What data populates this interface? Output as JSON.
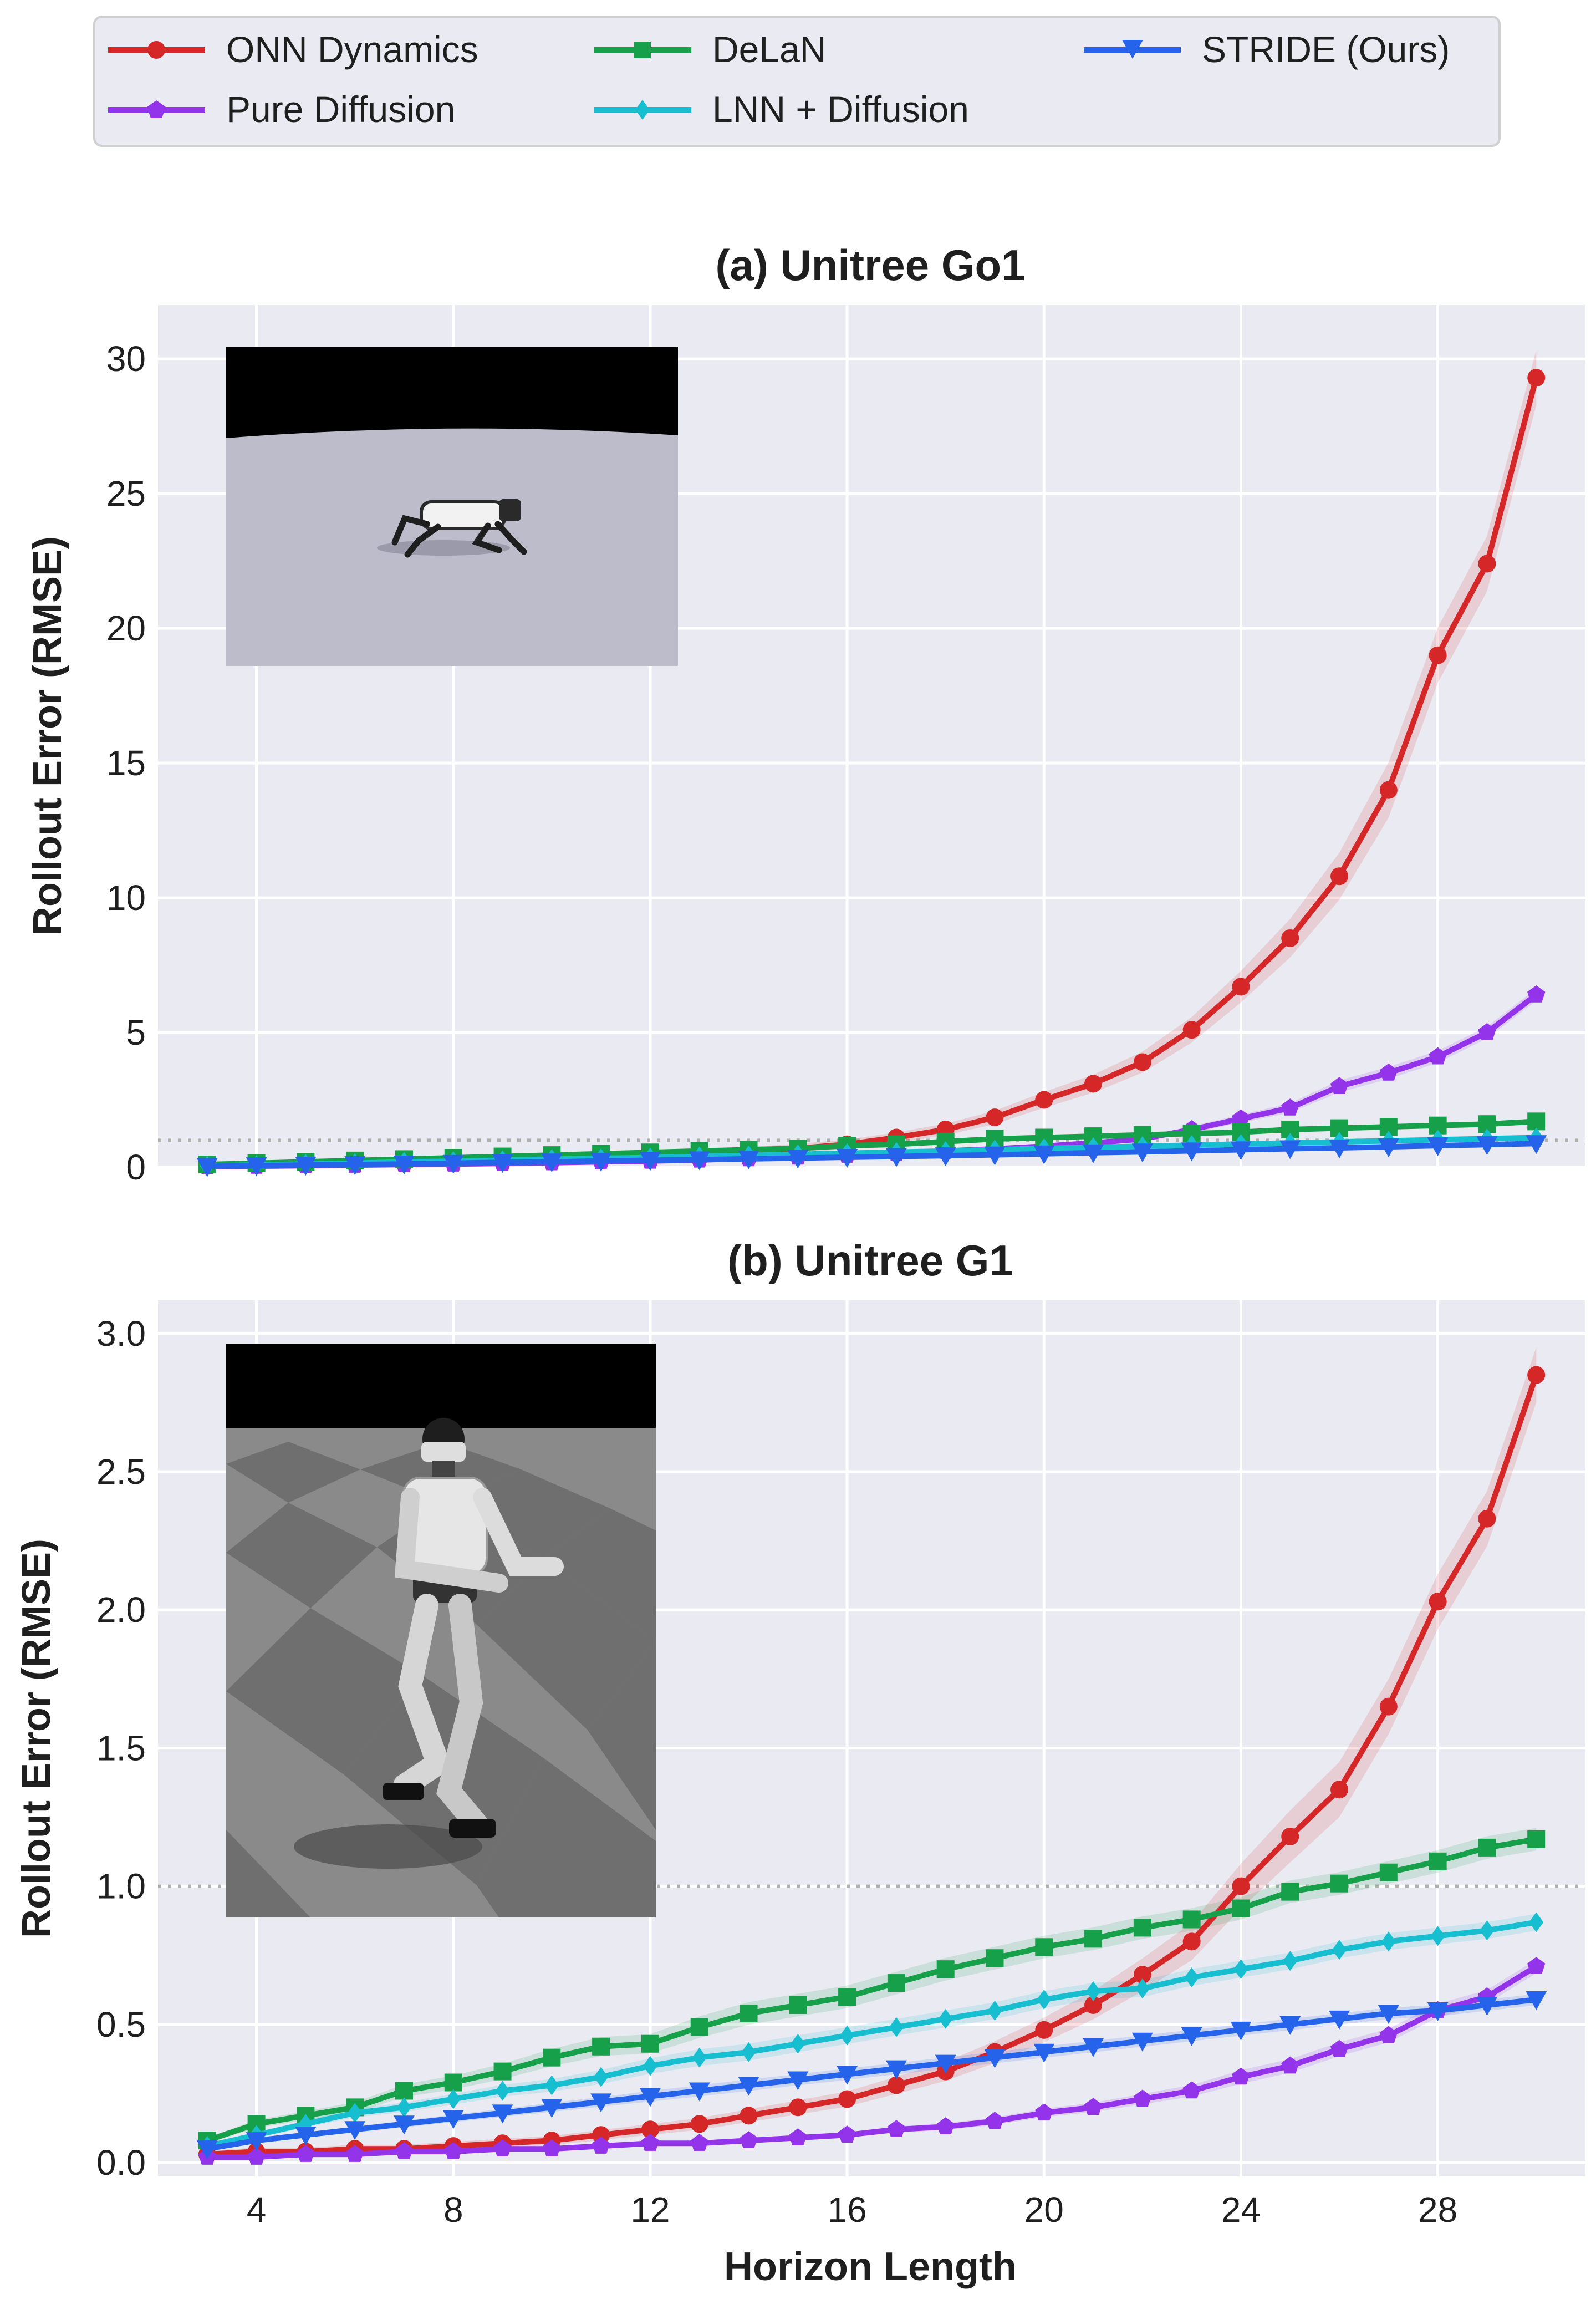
{
  "colors": {
    "plot_bg": "#eaeaf2",
    "grid": "#ffffff",
    "reference_line": "#b0b0b0",
    "legend_bg": "#eaeaf2",
    "legend_border": "#cfcfcf"
  },
  "legend": {
    "placement": "top",
    "entries": [
      {
        "label": "ONN Dynamics",
        "color": "#d62728",
        "marker": "circle"
      },
      {
        "label": "DeLaN",
        "color": "#16a04a",
        "marker": "square"
      },
      {
        "label": "STRIDE (Ours)",
        "color": "#2563eb",
        "marker": "triangle-down"
      },
      {
        "label": "Pure Diffusion",
        "color": "#9333ea",
        "marker": "pentagon"
      },
      {
        "label": "LNN + Diffusion",
        "color": "#17becf",
        "marker": "diamond"
      }
    ]
  },
  "chart_data": [
    {
      "type": "line",
      "title": "(a) Unitree Go1",
      "ylabel": "Rollout Error (RMSE)",
      "xlabel": "",
      "xlim": [
        2.0,
        31.0
      ],
      "ylim": [
        0,
        32
      ],
      "xticks": [
        4,
        8,
        12,
        16,
        20,
        24,
        28
      ],
      "yticks": [
        0,
        5,
        10,
        15,
        20,
        25,
        30
      ],
      "reference_line": 1.0,
      "grid": true,
      "inset": "quadruped-robot-render",
      "x": [
        3,
        4,
        5,
        6,
        7,
        8,
        9,
        10,
        11,
        12,
        13,
        14,
        15,
        16,
        17,
        18,
        19,
        20,
        21,
        22,
        23,
        24,
        25,
        26,
        27,
        28,
        29,
        30
      ],
      "series": [
        {
          "name": "ONN Dynamics",
          "values": [
            0.05,
            0.1,
            0.15,
            0.2,
            0.25,
            0.3,
            0.35,
            0.4,
            0.45,
            0.5,
            0.55,
            0.6,
            0.7,
            0.85,
            1.1,
            1.4,
            1.85,
            2.5,
            3.1,
            3.9,
            5.1,
            6.7,
            8.5,
            10.8,
            14.0,
            19.0,
            22.4,
            29.3
          ]
        },
        {
          "name": "Pure Diffusion",
          "values": [
            0.02,
            0.04,
            0.06,
            0.08,
            0.1,
            0.12,
            0.14,
            0.17,
            0.2,
            0.23,
            0.27,
            0.32,
            0.38,
            0.45,
            0.52,
            0.6,
            0.68,
            0.78,
            0.9,
            1.05,
            1.4,
            1.8,
            2.2,
            3.0,
            3.5,
            4.1,
            5.0,
            6.4
          ]
        },
        {
          "name": "DeLaN",
          "values": [
            0.1,
            0.15,
            0.2,
            0.25,
            0.3,
            0.35,
            0.4,
            0.45,
            0.5,
            0.55,
            0.6,
            0.65,
            0.7,
            0.8,
            0.85,
            0.95,
            1.05,
            1.1,
            1.15,
            1.2,
            1.25,
            1.3,
            1.4,
            1.45,
            1.5,
            1.55,
            1.6,
            1.7
          ]
        },
        {
          "name": "LNN + Diffusion",
          "values": [
            0.05,
            0.08,
            0.12,
            0.15,
            0.2,
            0.22,
            0.26,
            0.3,
            0.33,
            0.36,
            0.4,
            0.44,
            0.48,
            0.52,
            0.56,
            0.6,
            0.65,
            0.7,
            0.74,
            0.78,
            0.82,
            0.86,
            0.9,
            0.94,
            0.98,
            1.02,
            1.06,
            1.1
          ]
        },
        {
          "name": "STRIDE (Ours)",
          "values": [
            0.03,
            0.06,
            0.08,
            0.1,
            0.12,
            0.15,
            0.18,
            0.2,
            0.23,
            0.26,
            0.28,
            0.31,
            0.34,
            0.37,
            0.4,
            0.43,
            0.46,
            0.5,
            0.54,
            0.57,
            0.61,
            0.65,
            0.69,
            0.72,
            0.76,
            0.8,
            0.84,
            0.88
          ]
        }
      ]
    },
    {
      "type": "line",
      "title": "(b) Unitree G1",
      "ylabel": "Rollout Error (RMSE)",
      "xlabel": "Horizon Length",
      "xlim": [
        2.0,
        31.0
      ],
      "ylim": [
        -0.05,
        3.12
      ],
      "xticks": [
        4,
        8,
        12,
        16,
        20,
        24,
        28
      ],
      "yticks": [
        0.0,
        0.5,
        1.0,
        1.5,
        2.0,
        2.5,
        3.0
      ],
      "reference_line": 1.0,
      "grid": true,
      "inset": "humanoid-robot-render",
      "x": [
        3,
        4,
        5,
        6,
        7,
        8,
        9,
        10,
        11,
        12,
        13,
        14,
        15,
        16,
        17,
        18,
        19,
        20,
        21,
        22,
        23,
        24,
        25,
        26,
        27,
        28,
        29,
        30
      ],
      "series": [
        {
          "name": "ONN Dynamics",
          "values": [
            0.03,
            0.04,
            0.04,
            0.05,
            0.05,
            0.06,
            0.07,
            0.08,
            0.1,
            0.12,
            0.14,
            0.17,
            0.2,
            0.23,
            0.28,
            0.33,
            0.4,
            0.48,
            0.57,
            0.68,
            0.8,
            1.0,
            1.18,
            1.35,
            1.65,
            2.03,
            2.33,
            2.85
          ]
        },
        {
          "name": "Pure Diffusion",
          "values": [
            0.02,
            0.02,
            0.03,
            0.03,
            0.04,
            0.04,
            0.05,
            0.05,
            0.06,
            0.07,
            0.07,
            0.08,
            0.09,
            0.1,
            0.12,
            0.13,
            0.15,
            0.18,
            0.2,
            0.23,
            0.26,
            0.31,
            0.35,
            0.41,
            0.46,
            0.55,
            0.6,
            0.71
          ]
        },
        {
          "name": "DeLaN",
          "values": [
            0.08,
            0.14,
            0.17,
            0.2,
            0.26,
            0.29,
            0.33,
            0.38,
            0.42,
            0.43,
            0.49,
            0.54,
            0.57,
            0.6,
            0.65,
            0.7,
            0.74,
            0.78,
            0.81,
            0.85,
            0.88,
            0.92,
            0.98,
            1.01,
            1.05,
            1.09,
            1.14,
            1.17
          ]
        },
        {
          "name": "LNN + Diffusion",
          "values": [
            0.06,
            0.1,
            0.14,
            0.18,
            0.2,
            0.23,
            0.26,
            0.28,
            0.31,
            0.35,
            0.38,
            0.4,
            0.43,
            0.46,
            0.49,
            0.52,
            0.55,
            0.59,
            0.62,
            0.63,
            0.67,
            0.7,
            0.73,
            0.77,
            0.8,
            0.82,
            0.84,
            0.87
          ]
        },
        {
          "name": "STRIDE (Ours)",
          "values": [
            0.05,
            0.08,
            0.1,
            0.12,
            0.14,
            0.16,
            0.18,
            0.2,
            0.22,
            0.24,
            0.26,
            0.28,
            0.3,
            0.32,
            0.34,
            0.36,
            0.38,
            0.4,
            0.42,
            0.44,
            0.46,
            0.48,
            0.5,
            0.52,
            0.54,
            0.55,
            0.57,
            0.59
          ]
        }
      ]
    }
  ]
}
